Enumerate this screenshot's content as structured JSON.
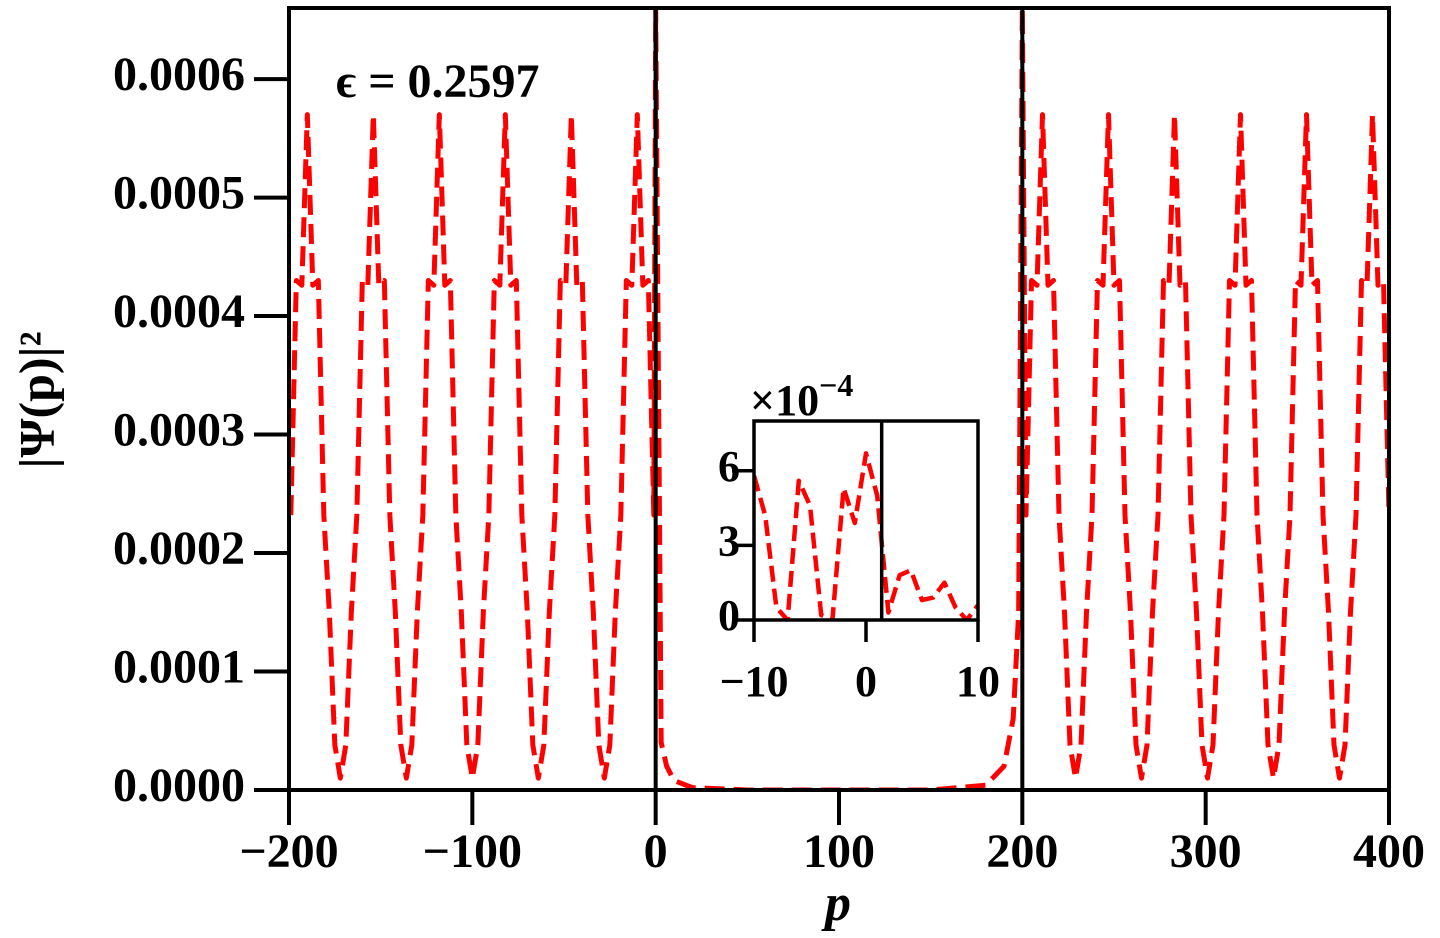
{
  "chart_data": [
    {
      "type": "line",
      "x_label": "p",
      "y_label": "|Ψ(p)|²",
      "annotation": "ϵ = 0.2597",
      "xlim": [
        -200,
        400
      ],
      "ylim": [
        0,
        0.00066
      ],
      "xticks": [
        {
          "value": -200,
          "label": "−200"
        },
        {
          "value": -100,
          "label": "−100"
        },
        0,
        100,
        200,
        300,
        400
      ],
      "yticks": [
        {
          "value": 0,
          "label": "0.0000"
        },
        {
          "value": 0.0001,
          "label": "0.0001"
        },
        {
          "value": 0.0002,
          "label": "0.0002"
        },
        {
          "value": 0.0003,
          "label": "0.0003"
        },
        {
          "value": 0.0004,
          "label": "0.0004"
        },
        {
          "value": 0.0005,
          "label": "0.0005"
        },
        {
          "value": 0.0006,
          "label": "0.0006"
        }
      ],
      "vlines": [
        0,
        200
      ],
      "series": [
        {
          "color": "#ff0000",
          "x": [
            -199,
            -196,
            -193,
            -190,
            -187,
            -184,
            -181,
            -178,
            -175,
            -172,
            -169,
            -166,
            -163,
            -160,
            -157,
            -154,
            -151,
            -148,
            -145,
            -142,
            -139,
            -136,
            -133,
            -130,
            -127,
            -124,
            -121,
            -118,
            -115,
            -112,
            -109,
            -106,
            -103,
            -100,
            -97,
            -94,
            -91,
            -88,
            -85,
            -82,
            -79,
            -76,
            -73,
            -70,
            -67,
            -64,
            -61,
            -58,
            -55,
            -52,
            -49,
            -46,
            -43,
            -40,
            -37,
            -34,
            -31,
            -28,
            -25,
            -22,
            -19,
            -16,
            -13,
            -10,
            -7,
            -4,
            -1,
            0,
            3,
            6,
            10,
            20,
            50,
            100,
            150,
            180,
            190,
            195,
            198,
            200,
            202,
            205,
            208,
            211,
            214,
            217,
            220,
            223,
            226,
            229,
            232,
            235,
            238,
            241,
            244,
            247,
            250,
            253,
            256,
            259,
            262,
            265,
            268,
            271,
            274,
            277,
            280,
            283,
            286,
            289,
            292,
            295,
            298,
            301,
            304,
            307,
            310,
            313,
            316,
            319,
            322,
            325,
            328,
            331,
            334,
            337,
            340,
            343,
            346,
            349,
            352,
            355,
            358,
            361,
            364,
            367,
            370,
            373,
            376,
            379,
            382,
            385,
            388,
            391,
            394,
            397,
            400
          ],
          "values": [
            0.000232,
            0.00043,
            0.000426,
            0.00057,
            0.000426,
            0.00043,
            0.000232,
            0.00015,
            3.8e-05,
            1e-05,
            3.8e-05,
            0.00015,
            0.000232,
            0.00043,
            0.000426,
            0.00057,
            0.000426,
            0.00043,
            0.000232,
            0.00015,
            3.8e-05,
            1e-05,
            3.8e-05,
            0.00015,
            0.000232,
            0.00043,
            0.000426,
            0.00057,
            0.000426,
            0.00043,
            0.000232,
            0.00015,
            3.8e-05,
            1e-05,
            3.8e-05,
            0.00015,
            0.000232,
            0.00043,
            0.000426,
            0.00057,
            0.000426,
            0.00043,
            0.000232,
            0.00015,
            3.8e-05,
            1e-05,
            3.8e-05,
            0.00015,
            0.000232,
            0.00043,
            0.000426,
            0.00057,
            0.000426,
            0.00043,
            0.000232,
            0.00015,
            3.8e-05,
            1e-05,
            3.8e-05,
            0.00015,
            0.000232,
            0.00043,
            0.000426,
            0.00057,
            0.000426,
            0.00043,
            0.000232,
            0.00066,
            4e-05,
            2e-05,
            8e-06,
            2e-06,
            0,
            0,
            0,
            4e-06,
            2e-05,
            6e-05,
            0.00015,
            0.00066,
            0.000232,
            0.00043,
            0.000426,
            0.00057,
            0.000426,
            0.00043,
            0.000232,
            0.00015,
            3.8e-05,
            1e-05,
            3.8e-05,
            0.00015,
            0.000232,
            0.00043,
            0.000426,
            0.00057,
            0.000426,
            0.00043,
            0.000232,
            0.00015,
            3.8e-05,
            1e-05,
            3.8e-05,
            0.00015,
            0.000232,
            0.00043,
            0.000426,
            0.00057,
            0.000426,
            0.00043,
            0.000232,
            0.00015,
            3.8e-05,
            1e-05,
            3.8e-05,
            0.00015,
            0.000232,
            0.00043,
            0.000426,
            0.00057,
            0.000426,
            0.00043,
            0.000232,
            0.00015,
            3.8e-05,
            1e-05,
            3.8e-05,
            0.00015,
            0.000232,
            0.00043,
            0.000426,
            0.00057,
            0.000426,
            0.00043,
            0.000232,
            0.00015,
            3.8e-05,
            1e-05,
            3.8e-05,
            0.00015,
            0.000232,
            0.00043,
            0.000426,
            0.00057,
            0.000426,
            0.00043,
            0.000232
          ]
        }
      ]
    },
    {
      "type": "line",
      "offset_label": {
        "base": "×10",
        "exponent": "−4"
      },
      "xlim": [
        -10,
        10
      ],
      "ylim": [
        0,
        8
      ],
      "xticks": [
        {
          "value": -10,
          "label": "−10"
        },
        0,
        10
      ],
      "yticks": [
        0,
        3,
        6
      ],
      "vlines": [
        1.4
      ],
      "series": [
        {
          "color": "#ff0000",
          "x": [
            -10,
            -9,
            -8,
            -7,
            -6,
            -5,
            -4,
            -3,
            -2,
            -1,
            0,
            1,
            2,
            3,
            4,
            5,
            6,
            7,
            8,
            9,
            10
          ],
          "values": [
            5.8,
            4.2,
            0.5,
            0,
            5.6,
            4.6,
            0.2,
            0,
            5.3,
            3.9,
            6.7,
            5.0,
            0.3,
            1.8,
            2.0,
            0.8,
            0.9,
            1.5,
            0.5,
            0,
            0.6
          ]
        }
      ]
    }
  ]
}
